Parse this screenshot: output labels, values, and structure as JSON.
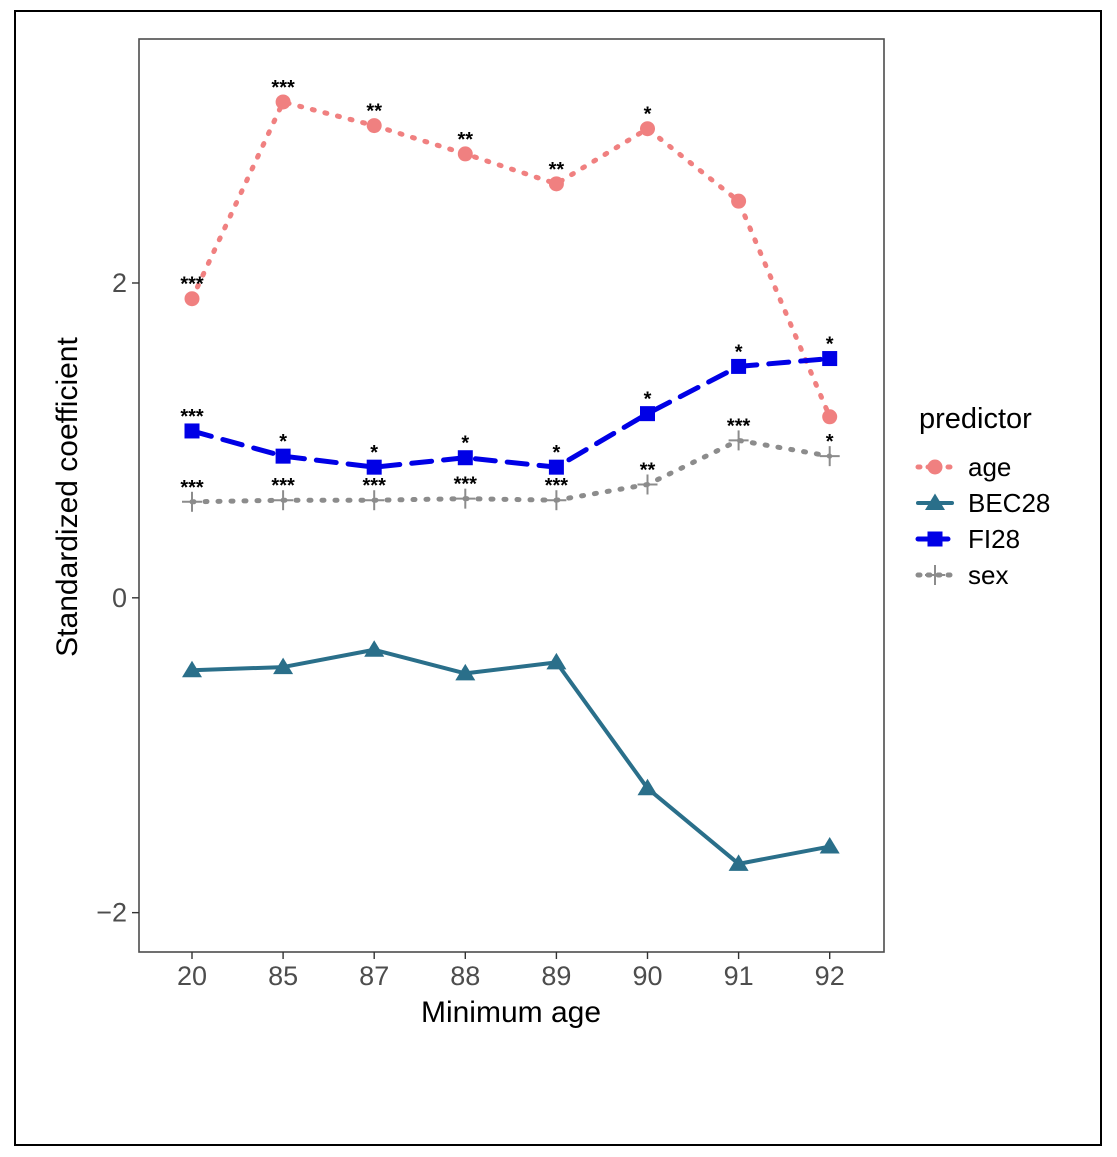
{
  "chart_data": {
    "type": "line",
    "categories": [
      "20",
      "85",
      "87",
      "88",
      "89",
      "90",
      "91",
      "92"
    ],
    "xlabel": "Minimum age",
    "ylabel": "Standardized coefficient",
    "ylim": [
      -2.25,
      3.55
    ],
    "yticks": [
      -2,
      0,
      2
    ],
    "ytick_labels": [
      "−2",
      "0",
      "2"
    ],
    "grid": false,
    "legend": {
      "title": "predictor",
      "position": "right"
    },
    "series": [
      {
        "name": "age",
        "color": "#f08080",
        "line": "dotted",
        "marker": "circle",
        "values": [
          1.9,
          3.15,
          3.0,
          2.82,
          2.63,
          2.98,
          2.52,
          1.15
        ],
        "significance": [
          "***",
          "***",
          "**",
          "**",
          "**",
          "*",
          "",
          ""
        ]
      },
      {
        "name": "BEC28",
        "color": "#2a6f8a",
        "line": "solid",
        "marker": "triangle",
        "values": [
          -0.46,
          -0.44,
          -0.33,
          -0.48,
          -0.41,
          -1.21,
          -1.69,
          -1.58
        ],
        "significance": [
          "",
          "",
          "",
          "",
          "",
          "",
          "",
          ""
        ]
      },
      {
        "name": "FI28",
        "color": "#0000e6",
        "line": "dashed",
        "marker": "square",
        "values": [
          1.06,
          0.9,
          0.83,
          0.89,
          0.83,
          1.17,
          1.47,
          1.52
        ],
        "significance": [
          "***",
          "*",
          "*",
          "*",
          "*",
          "*",
          "*",
          "*"
        ]
      },
      {
        "name": "sex",
        "color": "#8c8c8c",
        "line": "dotted",
        "marker": "plus",
        "values": [
          0.61,
          0.62,
          0.62,
          0.63,
          0.62,
          0.72,
          1.0,
          0.9
        ],
        "significance": [
          "***",
          "***",
          "***",
          "***",
          "***",
          "**",
          "***",
          "*"
        ]
      }
    ]
  }
}
